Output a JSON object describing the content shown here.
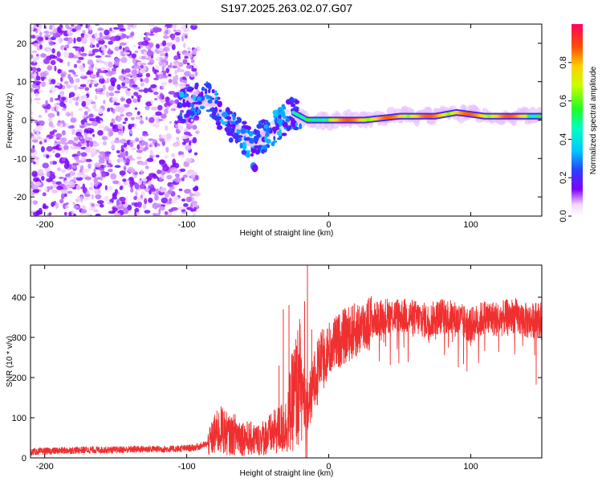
{
  "title": "S197.2025.263.02.07.G07",
  "chart_data": [
    {
      "type": "heatmap",
      "xlabel": "Height of straight line (km)",
      "ylabel": "Frequency (Hz)",
      "xlim": [
        -210,
        150
      ],
      "ylim": [
        -25,
        25
      ],
      "xticks": [
        -200,
        -100,
        0,
        100
      ],
      "yticks": [
        -20,
        -10,
        0,
        10,
        20
      ],
      "colorbar": {
        "label": "Normalized spectral amplitude",
        "range": [
          0,
          1
        ],
        "ticks": [
          "0.0",
          "0.2",
          "0.4",
          "0.6",
          "0.8"
        ],
        "tick_values": [
          0.0,
          0.2,
          0.4,
          0.6,
          0.8
        ]
      },
      "ridge": [
        {
          "x": -105,
          "y": 3
        },
        {
          "x": -95,
          "y": 5
        },
        {
          "x": -85,
          "y": 6
        },
        {
          "x": -75,
          "y": 1
        },
        {
          "x": -65,
          "y": -3
        },
        {
          "x": -55,
          "y": -6
        },
        {
          "x": -45,
          "y": -4
        },
        {
          "x": -35,
          "y": -1
        },
        {
          "x": -25,
          "y": 2
        },
        {
          "x": -15,
          "y": 0
        },
        {
          "x": 0,
          "y": 0
        },
        {
          "x": 25,
          "y": 0
        },
        {
          "x": 50,
          "y": 1
        },
        {
          "x": 75,
          "y": 1
        },
        {
          "x": 90,
          "y": 2
        },
        {
          "x": 110,
          "y": 1
        },
        {
          "x": 150,
          "y": 1
        }
      ]
    },
    {
      "type": "line",
      "xlabel": "Height of straight line (km)",
      "ylabel": "SNR (10 * v/v)",
      "xlim": [
        -210,
        150
      ],
      "ylim": [
        0,
        480
      ],
      "xticks": [
        -200,
        -100,
        0,
        100
      ],
      "yticks": [
        0,
        100,
        200,
        300,
        400
      ],
      "color": "#f03030",
      "series": [
        {
          "name": "SNR",
          "x": [
            -210,
            -190,
            -170,
            -150,
            -130,
            -110,
            -95,
            -85,
            -80,
            -75,
            -70,
            -65,
            -60,
            -50,
            -40,
            -30,
            -25,
            -20,
            -15,
            -10,
            -5,
            0,
            10,
            20,
            30,
            40,
            50,
            60,
            70,
            80,
            90,
            100,
            110,
            120,
            130,
            140,
            150
          ],
          "values": [
            15,
            18,
            20,
            20,
            22,
            22,
            25,
            35,
            60,
            70,
            55,
            60,
            50,
            45,
            60,
            80,
            150,
            190,
            120,
            200,
            250,
            270,
            300,
            320,
            340,
            355,
            355,
            350,
            340,
            355,
            345,
            330,
            350,
            345,
            355,
            340,
            345
          ]
        }
      ],
      "spikes": [
        {
          "x": -35,
          "y": 230
        },
        {
          "x": -32,
          "y": 370
        },
        {
          "x": -28,
          "y": 380
        },
        {
          "x": -20,
          "y": 300
        },
        {
          "x": -17,
          "y": 390
        },
        {
          "x": -15,
          "y": 480
        },
        {
          "x": -12,
          "y": 320
        },
        {
          "x": -8,
          "y": 290
        }
      ]
    }
  ]
}
